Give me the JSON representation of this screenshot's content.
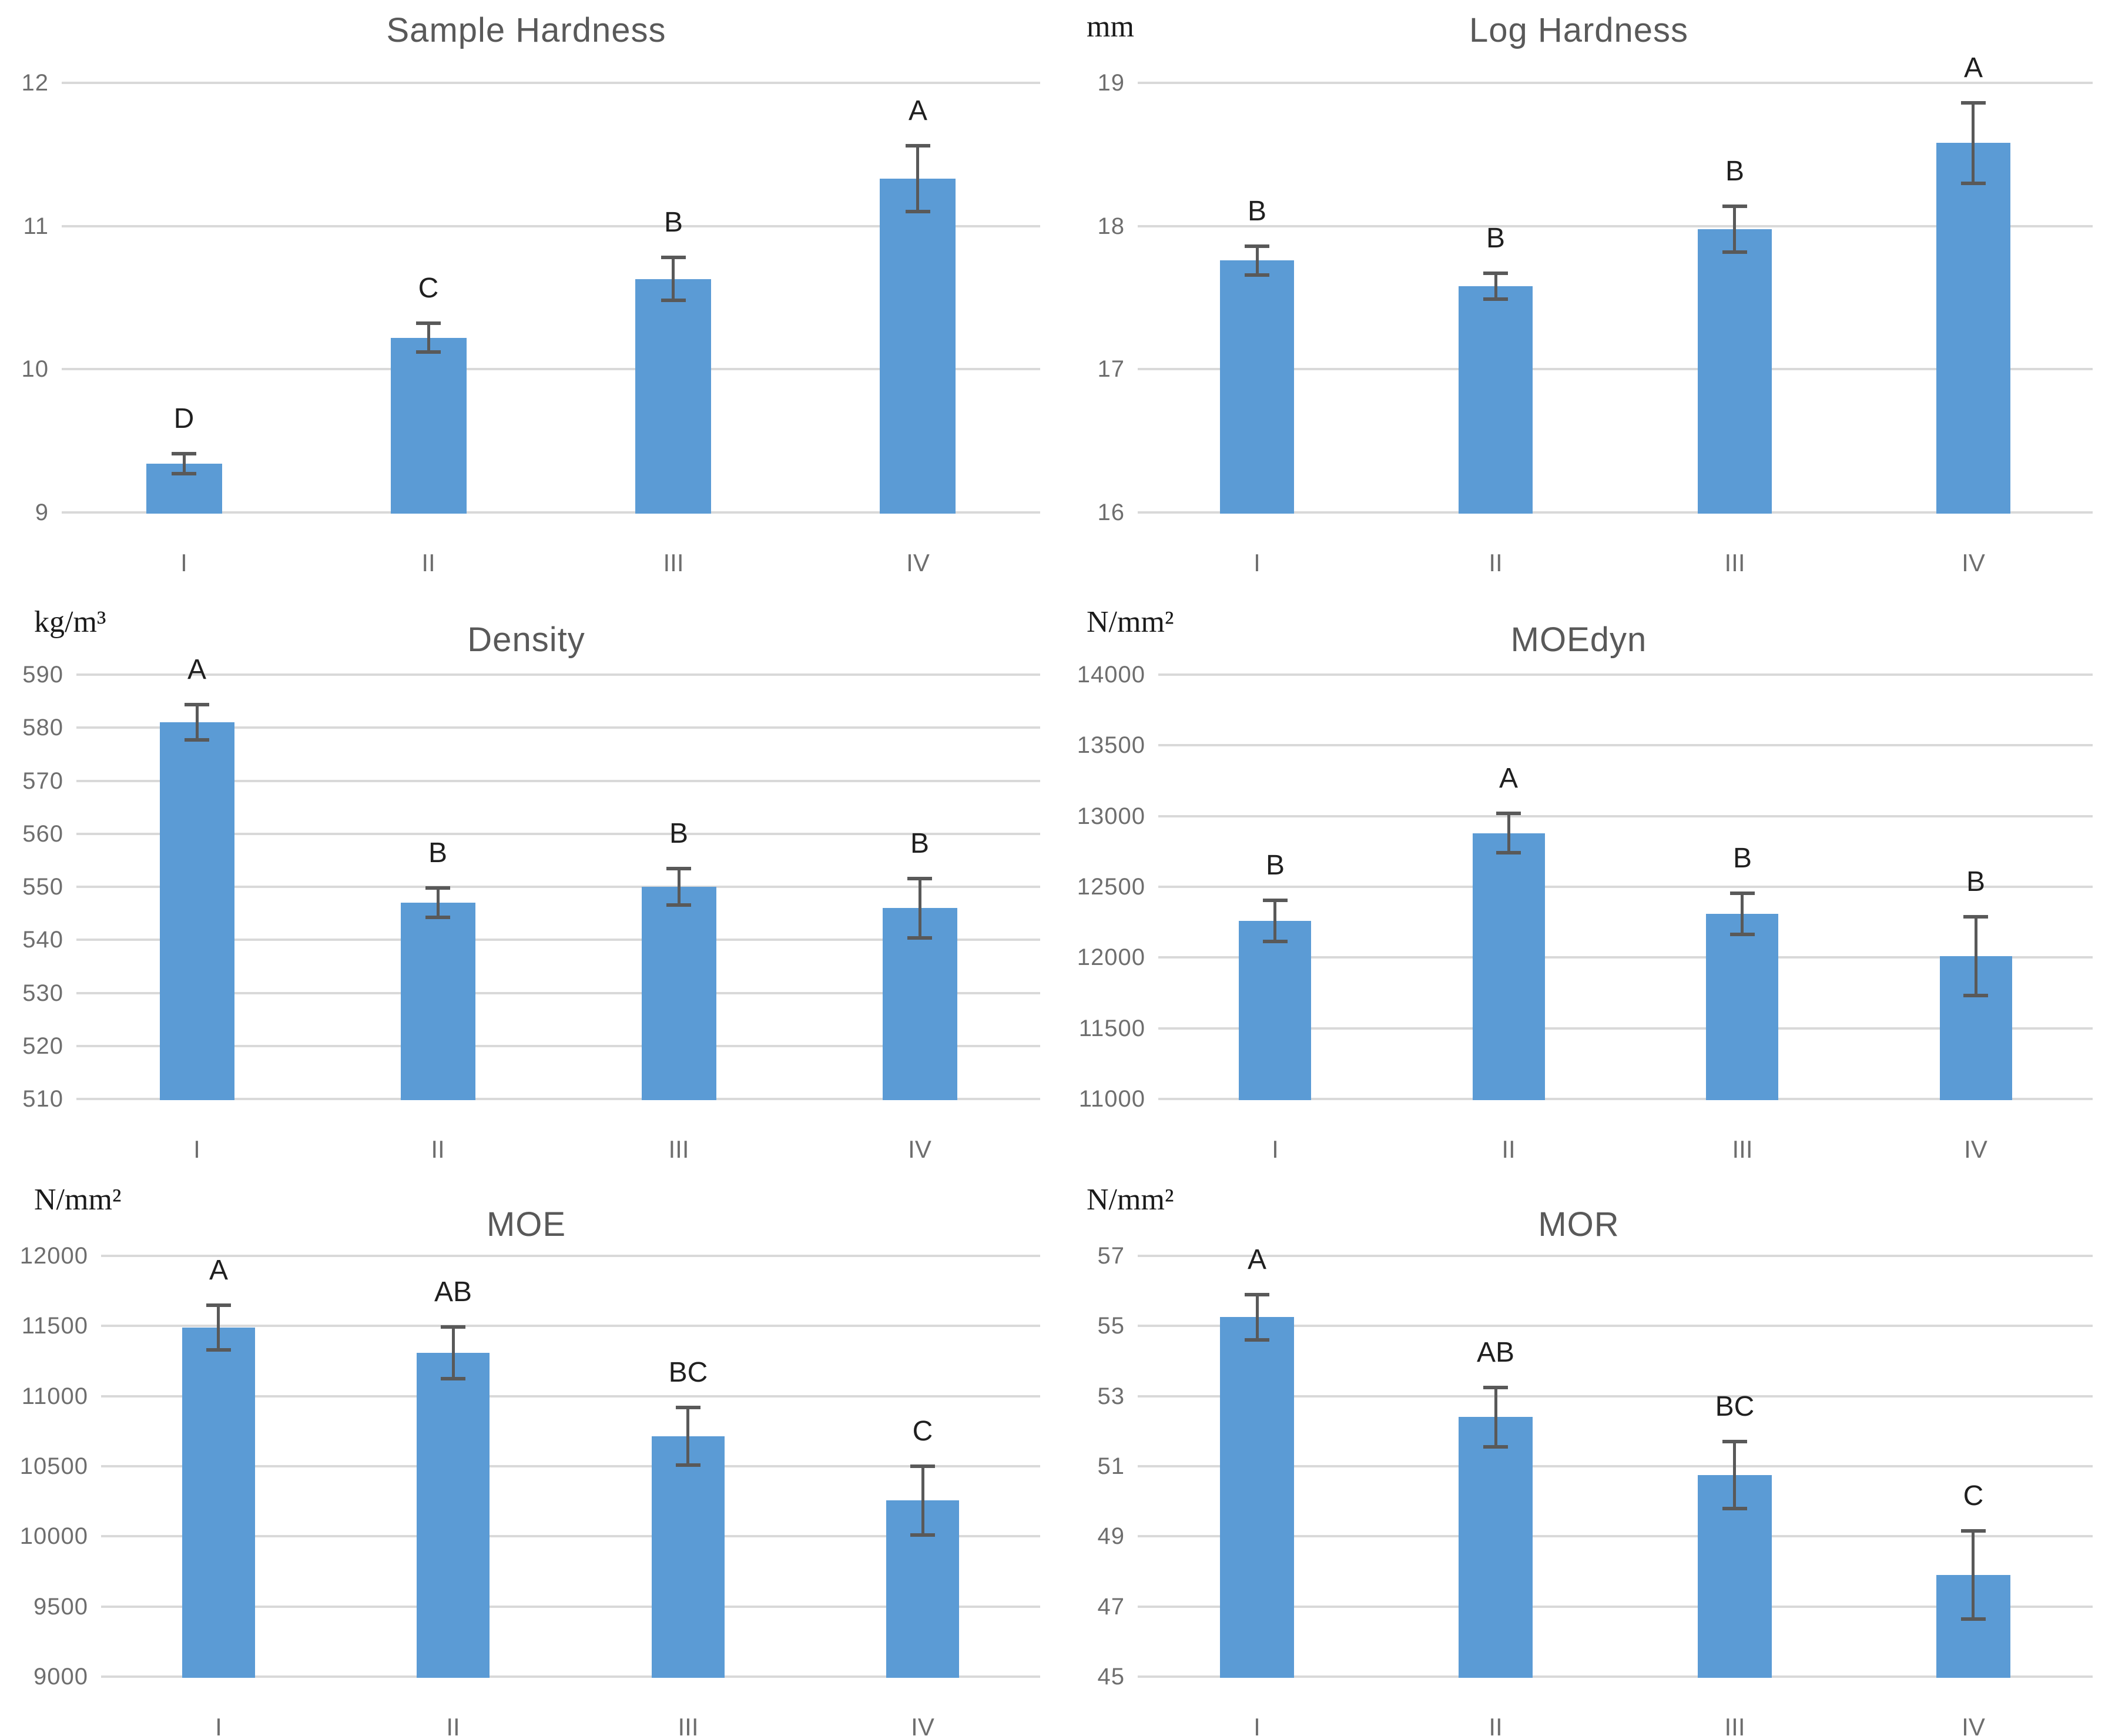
{
  "page": {
    "background": "#FFFFFF",
    "layout": "2x3 grid of bar charts"
  },
  "style": {
    "bar_color": "#5B9BD5",
    "error_bar_color": "#595959",
    "gridline_color": "#D9D9D9",
    "axis_label_color": "#6E6E6E",
    "title_color": "#595959",
    "letter_color": "#1F1F1F",
    "unit_label_color": "#1A1A1A"
  },
  "chart_data": [
    {
      "type": "bar",
      "title": "Sample Hardness",
      "unit_label": "",
      "categories": [
        "I",
        "II",
        "III",
        "IV"
      ],
      "values": [
        9.34,
        10.22,
        10.63,
        11.33
      ],
      "error_bars": [
        0.07,
        0.1,
        0.15,
        0.23
      ],
      "significance_letters": [
        "D",
        "C",
        "B",
        "A"
      ],
      "ylim": [
        9,
        12
      ],
      "yticks": [
        9,
        10,
        11,
        12
      ],
      "grid": true,
      "legend": false
    },
    {
      "type": "bar",
      "title": "Log Hardness",
      "unit_label": "mm",
      "categories": [
        "I",
        "II",
        "III",
        "IV"
      ],
      "values": [
        17.76,
        17.58,
        17.98,
        18.58
      ],
      "error_bars": [
        0.1,
        0.09,
        0.16,
        0.28
      ],
      "significance_letters": [
        "B",
        "B",
        "B",
        "A"
      ],
      "ylim": [
        16,
        19
      ],
      "yticks": [
        16,
        17,
        18,
        19
      ],
      "grid": true,
      "legend": false
    },
    {
      "type": "bar",
      "title": "Density",
      "unit_label": "kg/m³",
      "categories": [
        "I",
        "II",
        "III",
        "IV"
      ],
      "values": [
        581,
        547,
        550,
        546
      ],
      "error_bars": [
        3.3,
        2.8,
        3.4,
        5.6
      ],
      "significance_letters": [
        "A",
        "B",
        "B",
        "B"
      ],
      "ylim": [
        510,
        590
      ],
      "yticks": [
        510,
        520,
        530,
        540,
        550,
        560,
        570,
        580,
        590
      ],
      "grid": true,
      "legend": false
    },
    {
      "type": "bar",
      "title": "MOEdyn",
      "unit_label": "N/mm²",
      "categories": [
        "I",
        "II",
        "III",
        "IV"
      ],
      "values": [
        12260,
        12880,
        12310,
        12010
      ],
      "error_bars": [
        145,
        140,
        145,
        280
      ],
      "significance_letters": [
        "B",
        "A",
        "B",
        "B"
      ],
      "ylim": [
        11000,
        14000
      ],
      "yticks": [
        11000,
        11500,
        12000,
        12500,
        13000,
        13500,
        14000
      ],
      "grid": true,
      "legend": false
    },
    {
      "type": "bar",
      "title": "MOE",
      "unit_label": "N/mm²",
      "categories": [
        "I",
        "II",
        "III",
        "IV"
      ],
      "values": [
        11490,
        11310,
        10715,
        10255
      ],
      "error_bars": [
        160,
        185,
        205,
        245
      ],
      "significance_letters": [
        "A",
        "AB",
        "BC",
        "C"
      ],
      "ylim": [
        9000,
        12000
      ],
      "yticks": [
        9000,
        9500,
        10000,
        10500,
        11000,
        11500,
        12000
      ],
      "grid": true,
      "legend": false
    },
    {
      "type": "bar",
      "title": "MOR",
      "unit_label": "N/mm²",
      "categories": [
        "I",
        "II",
        "III",
        "IV"
      ],
      "values": [
        55.25,
        52.4,
        50.75,
        47.9
      ],
      "error_bars": [
        0.65,
        0.85,
        0.95,
        1.25
      ],
      "significance_letters": [
        "A",
        "AB",
        "BC",
        "C"
      ],
      "ylim": [
        45,
        57
      ],
      "yticks": [
        45,
        47,
        49,
        51,
        53,
        55,
        57
      ],
      "grid": true,
      "legend": false
    }
  ]
}
